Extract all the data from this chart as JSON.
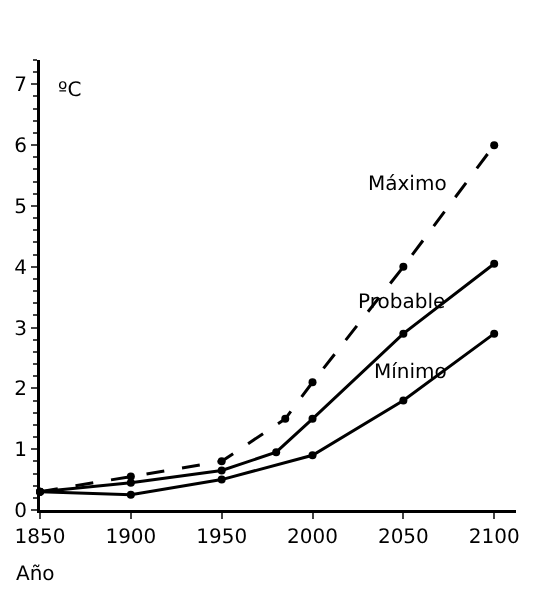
{
  "chart_data": {
    "type": "line",
    "xlabel": "Año",
    "ylabel": "ºC",
    "x": [
      1850,
      1900,
      1950,
      1985,
      2000,
      2050,
      2100
    ],
    "series": [
      {
        "name": "Máximo",
        "color": "#000000",
        "line_style": "dashed",
        "values": [
          0.3,
          0.55,
          0.8,
          1.5,
          2.1,
          4.0,
          6.0
        ]
      },
      {
        "name": "Probable",
        "color": "#000000",
        "line_style": "solid",
        "x": [
          1850,
          1900,
          1950,
          1980,
          2000,
          2050,
          2100
        ],
        "values": [
          0.3,
          0.45,
          0.65,
          0.95,
          1.5,
          2.9,
          4.05
        ]
      },
      {
        "name": "Mínimo",
        "color": "#000000",
        "line_style": "solid",
        "x": [
          1850,
          1900,
          1950,
          2000,
          2050,
          2100
        ],
        "values": [
          0.3,
          0.25,
          0.5,
          0.9,
          1.8,
          2.9
        ]
      }
    ],
    "marker": "circle",
    "grid": false,
    "legend": false,
    "xlim": [
      1850,
      2112
    ],
    "xticks": [
      1850,
      1900,
      1950,
      2000,
      2050,
      2100
    ],
    "ylim": [
      0,
      7.4
    ],
    "yticks": [
      0,
      1,
      2,
      3,
      4,
      5,
      6,
      7
    ]
  }
}
